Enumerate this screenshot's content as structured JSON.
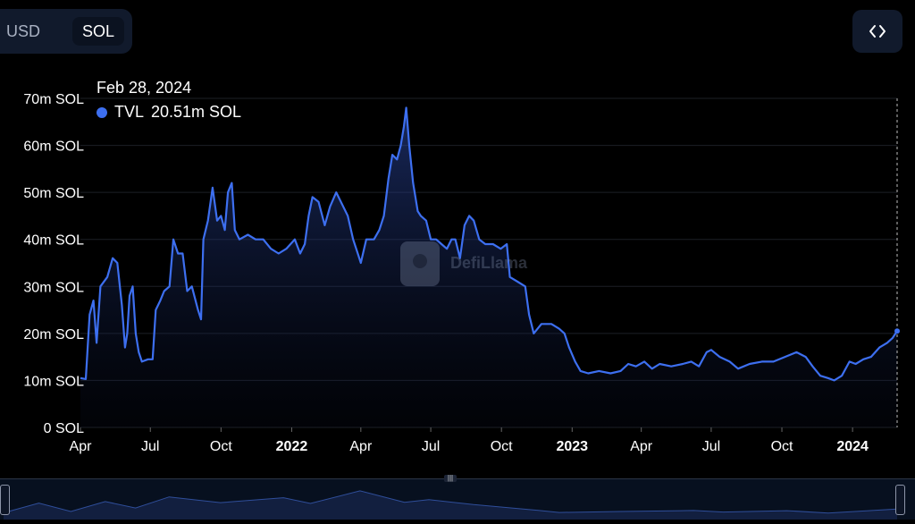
{
  "toolbar": {
    "usd_label": "USD",
    "sol_label": "SOL",
    "embed_icon": "code-brackets-icon"
  },
  "tooltip": {
    "date": "Feb 28, 2024",
    "series": "TVL",
    "value": "20.51m SOL"
  },
  "watermark": {
    "text": "DefiLlama",
    "icon": "llama-logo"
  },
  "colors": {
    "line": "#3d6ff0",
    "background": "#000000",
    "grid": "#1c1f26"
  },
  "chart_data": {
    "type": "area",
    "series": [
      {
        "name": "TVL"
      }
    ],
    "ylim": [
      0,
      70
    ],
    "grid": true,
    "y_ticks": [
      0,
      10,
      20,
      30,
      40,
      50,
      60,
      70
    ],
    "y_tick_labels": [
      "0 SOL",
      "10m SOL",
      "20m SOL",
      "30m SOL",
      "40m SOL",
      "50m SOL",
      "60m SOL",
      "70m SOL"
    ],
    "x_ticks": [
      {
        "date": "2021-04-01",
        "label": "Apr",
        "bold": false
      },
      {
        "date": "2021-07-01",
        "label": "Jul",
        "bold": false
      },
      {
        "date": "2021-10-01",
        "label": "Oct",
        "bold": false
      },
      {
        "date": "2022-01-01",
        "label": "2022",
        "bold": true
      },
      {
        "date": "2022-04-01",
        "label": "Apr",
        "bold": false
      },
      {
        "date": "2022-07-01",
        "label": "Jul",
        "bold": false
      },
      {
        "date": "2022-10-01",
        "label": "Oct",
        "bold": false
      },
      {
        "date": "2023-01-01",
        "label": "2023",
        "bold": true
      },
      {
        "date": "2023-04-01",
        "label": "Apr",
        "bold": false
      },
      {
        "date": "2023-07-01",
        "label": "Jul",
        "bold": false
      },
      {
        "date": "2023-10-01",
        "label": "Oct",
        "bold": false
      },
      {
        "date": "2024-01-01",
        "label": "2024",
        "bold": true
      }
    ],
    "x_range": [
      "2021-04-01",
      "2024-02-28"
    ],
    "points": [
      [
        "2021-04-01",
        10.5
      ],
      [
        "2021-04-08",
        10.3
      ],
      [
        "2021-04-13",
        24
      ],
      [
        "2021-04-18",
        27
      ],
      [
        "2021-04-22",
        18
      ],
      [
        "2021-04-27",
        30
      ],
      [
        "2021-05-06",
        32
      ],
      [
        "2021-05-13",
        36
      ],
      [
        "2021-05-19",
        35
      ],
      [
        "2021-05-25",
        26
      ],
      [
        "2021-05-29",
        17
      ],
      [
        "2021-06-01",
        20
      ],
      [
        "2021-06-04",
        28
      ],
      [
        "2021-06-08",
        30
      ],
      [
        "2021-06-12",
        20
      ],
      [
        "2021-06-16",
        16
      ],
      [
        "2021-06-20",
        14
      ],
      [
        "2021-06-28",
        14.5
      ],
      [
        "2021-07-04",
        14.5
      ],
      [
        "2021-07-08",
        25
      ],
      [
        "2021-07-14",
        27
      ],
      [
        "2021-07-19",
        29
      ],
      [
        "2021-07-26",
        30
      ],
      [
        "2021-07-31",
        40
      ],
      [
        "2021-08-06",
        37
      ],
      [
        "2021-08-12",
        37
      ],
      [
        "2021-08-18",
        29
      ],
      [
        "2021-08-24",
        30
      ],
      [
        "2021-09-01",
        25
      ],
      [
        "2021-09-05",
        23
      ],
      [
        "2021-09-08",
        40
      ],
      [
        "2021-09-14",
        44
      ],
      [
        "2021-09-20",
        51
      ],
      [
        "2021-09-26",
        44
      ],
      [
        "2021-10-01",
        45
      ],
      [
        "2021-10-06",
        42
      ],
      [
        "2021-10-10",
        50
      ],
      [
        "2021-10-15",
        52
      ],
      [
        "2021-10-19",
        42
      ],
      [
        "2021-10-25",
        40
      ],
      [
        "2021-11-05",
        41
      ],
      [
        "2021-11-15",
        40
      ],
      [
        "2021-11-25",
        40
      ],
      [
        "2021-12-05",
        38
      ],
      [
        "2021-12-15",
        37
      ],
      [
        "2021-12-25",
        38
      ],
      [
        "2022-01-05",
        40
      ],
      [
        "2022-01-12",
        37
      ],
      [
        "2022-01-18",
        39
      ],
      [
        "2022-01-23",
        45
      ],
      [
        "2022-01-28",
        49
      ],
      [
        "2022-02-05",
        48
      ],
      [
        "2022-02-13",
        43
      ],
      [
        "2022-02-20",
        47
      ],
      [
        "2022-02-28",
        50
      ],
      [
        "2022-03-06",
        48
      ],
      [
        "2022-03-15",
        45
      ],
      [
        "2022-03-22",
        40
      ],
      [
        "2022-03-28",
        37
      ],
      [
        "2022-04-01",
        35
      ],
      [
        "2022-04-08",
        40
      ],
      [
        "2022-04-18",
        40
      ],
      [
        "2022-04-25",
        42
      ],
      [
        "2022-05-01",
        45
      ],
      [
        "2022-05-07",
        53
      ],
      [
        "2022-05-12",
        58
      ],
      [
        "2022-05-18",
        57
      ],
      [
        "2022-05-23",
        60
      ],
      [
        "2022-05-27",
        64
      ],
      [
        "2022-05-30",
        68
      ],
      [
        "2022-06-03",
        60
      ],
      [
        "2022-06-08",
        52
      ],
      [
        "2022-06-14",
        46
      ],
      [
        "2022-06-18",
        45
      ],
      [
        "2022-06-25",
        44
      ],
      [
        "2022-07-01",
        40
      ],
      [
        "2022-07-08",
        40
      ],
      [
        "2022-07-15",
        39
      ],
      [
        "2022-07-22",
        38
      ],
      [
        "2022-07-28",
        40
      ],
      [
        "2022-08-02",
        40
      ],
      [
        "2022-08-08",
        36
      ],
      [
        "2022-08-14",
        43
      ],
      [
        "2022-08-20",
        45
      ],
      [
        "2022-08-26",
        44
      ],
      [
        "2022-09-02",
        40
      ],
      [
        "2022-09-10",
        39
      ],
      [
        "2022-09-20",
        39
      ],
      [
        "2022-09-30",
        38
      ],
      [
        "2022-10-08",
        39
      ],
      [
        "2022-10-12",
        32
      ],
      [
        "2022-10-22",
        31
      ],
      [
        "2022-11-01",
        30
      ],
      [
        "2022-11-06",
        24
      ],
      [
        "2022-11-12",
        20
      ],
      [
        "2022-11-22",
        22
      ],
      [
        "2022-12-05",
        22
      ],
      [
        "2022-12-15",
        21
      ],
      [
        "2022-12-22",
        20
      ],
      [
        "2022-12-28",
        17
      ],
      [
        "2023-01-05",
        14
      ],
      [
        "2023-01-12",
        12
      ],
      [
        "2023-01-22",
        11.5
      ],
      [
        "2023-02-05",
        12
      ],
      [
        "2023-02-20",
        11.5
      ],
      [
        "2023-03-05",
        12
      ],
      [
        "2023-03-15",
        13.5
      ],
      [
        "2023-03-25",
        13
      ],
      [
        "2023-04-05",
        14
      ],
      [
        "2023-04-15",
        12.5
      ],
      [
        "2023-04-25",
        13.5
      ],
      [
        "2023-05-10",
        13
      ],
      [
        "2023-05-25",
        13.5
      ],
      [
        "2023-06-05",
        14
      ],
      [
        "2023-06-15",
        13
      ],
      [
        "2023-06-25",
        16
      ],
      [
        "2023-07-01",
        16.5
      ],
      [
        "2023-07-12",
        15
      ],
      [
        "2023-07-25",
        14
      ],
      [
        "2023-08-05",
        12.5
      ],
      [
        "2023-08-20",
        13.5
      ],
      [
        "2023-09-05",
        14
      ],
      [
        "2023-09-20",
        14
      ],
      [
        "2023-10-05",
        15
      ],
      [
        "2023-10-20",
        16
      ],
      [
        "2023-11-01",
        15
      ],
      [
        "2023-11-10",
        13
      ],
      [
        "2023-11-20",
        11
      ],
      [
        "2023-11-30",
        10.5
      ],
      [
        "2023-12-08",
        10
      ],
      [
        "2023-12-18",
        11
      ],
      [
        "2023-12-28",
        14
      ],
      [
        "2024-01-05",
        13.5
      ],
      [
        "2024-01-15",
        14.5
      ],
      [
        "2024-01-25",
        15
      ],
      [
        "2024-02-05",
        17
      ],
      [
        "2024-02-15",
        18
      ],
      [
        "2024-02-22",
        19
      ],
      [
        "2024-02-28",
        20.5
      ]
    ],
    "brush_points": [
      [
        "2021-04-01",
        10.5
      ],
      [
        "2021-05-13",
        36
      ],
      [
        "2021-06-20",
        14
      ],
      [
        "2021-07-31",
        40
      ],
      [
        "2021-09-05",
        23
      ],
      [
        "2021-10-15",
        52
      ],
      [
        "2021-12-15",
        37
      ],
      [
        "2022-02-28",
        50
      ],
      [
        "2022-04-01",
        35
      ],
      [
        "2022-05-30",
        68
      ],
      [
        "2022-07-22",
        38
      ],
      [
        "2022-08-20",
        45
      ],
      [
        "2022-10-12",
        32
      ],
      [
        "2022-12-28",
        17
      ],
      [
        "2023-01-22",
        11.5
      ],
      [
        "2023-04-05",
        14
      ],
      [
        "2023-07-01",
        16.5
      ],
      [
        "2023-08-05",
        12.5
      ],
      [
        "2023-10-20",
        16
      ],
      [
        "2023-12-08",
        10
      ],
      [
        "2024-02-28",
        20.5
      ]
    ]
  }
}
